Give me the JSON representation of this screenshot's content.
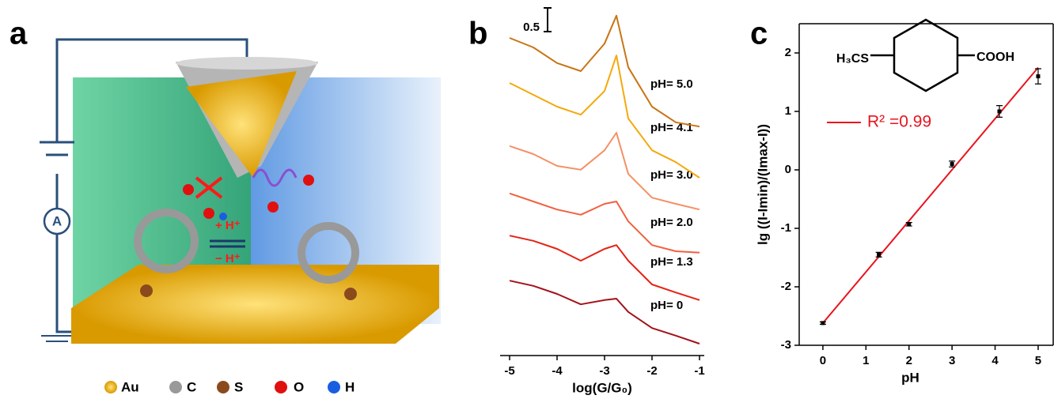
{
  "panel_labels": [
    "a",
    "b",
    "c"
  ],
  "diagram": {
    "meter": "A",
    "forward": "+ H⁺",
    "backward": "− H⁺",
    "legend": [
      "Au",
      "C",
      "S",
      "O",
      "H"
    ]
  },
  "chart_data": [
    {
      "type": "line",
      "x_label": "log(G/G₀)",
      "scale_bar": 0.5,
      "x": [
        -5,
        -4.5,
        -4,
        -3.5,
        -3,
        -2.75,
        -2.5,
        -2,
        -1.5,
        -1
      ],
      "xlim": [
        -5.2,
        -0.9
      ],
      "xticks": [
        -5,
        -4,
        -3,
        -2,
        -1
      ],
      "ylim": [
        0,
        7.5
      ],
      "series": [
        {
          "name": "pH= 0",
          "color": "#a3121a",
          "values": [
            1.58,
            1.47,
            1.3,
            1.08,
            1.17,
            1.2,
            0.92,
            0.58,
            0.42,
            0.25
          ]
        },
        {
          "name": "pH= 1.3",
          "color": "#e42316",
          "values": [
            2.53,
            2.42,
            2.25,
            2.0,
            2.25,
            2.33,
            2.0,
            1.5,
            1.33,
            1.17
          ]
        },
        {
          "name": "pH= 2.0",
          "color": "#f2603f",
          "values": [
            3.42,
            3.25,
            3.08,
            2.97,
            3.2,
            3.25,
            2.83,
            2.33,
            2.2,
            2.17
          ]
        },
        {
          "name": "pH= 3.0",
          "color": "#f59066",
          "values": [
            4.42,
            4.25,
            4.0,
            3.92,
            4.33,
            4.7,
            3.83,
            3.33,
            3.2,
            3.08
          ]
        },
        {
          "name": "pH= 4.1",
          "color": "#f4a90c",
          "values": [
            5.75,
            5.5,
            5.25,
            5.08,
            5.58,
            6.33,
            5.0,
            4.33,
            4.08,
            3.75
          ]
        },
        {
          "name": "pH= 5.0",
          "color": "#c97414",
          "values": [
            6.7,
            6.5,
            6.17,
            6.0,
            6.58,
            7.17,
            6.08,
            5.25,
            4.92,
            4.83
          ]
        }
      ]
    },
    {
      "type": "scatter",
      "x_label": "pH",
      "y_label": "lg ((I-Imin)/(Imax-I))",
      "molecule": [
        "H₃CS",
        "COOH"
      ],
      "x": [
        0,
        1.3,
        2,
        3,
        4.1,
        5
      ],
      "values": [
        -2.62,
        -1.45,
        -0.93,
        0.1,
        1.0,
        1.6
      ],
      "errors": [
        0.02,
        0.04,
        0.03,
        0.05,
        0.1,
        0.13
      ],
      "color": "#000000",
      "fit": {
        "label": "R² =0.99",
        "color": "#e8141e",
        "x": [
          0,
          5
        ],
        "y": [
          -2.62,
          1.75
        ]
      },
      "xlim": [
        -0.55,
        5.35
      ],
      "xticks": [
        0,
        1,
        2,
        3,
        4,
        5
      ],
      "ylim": [
        -3,
        2.5
      ],
      "yticks": [
        -3,
        -2,
        -1,
        0,
        1,
        2
      ]
    }
  ]
}
